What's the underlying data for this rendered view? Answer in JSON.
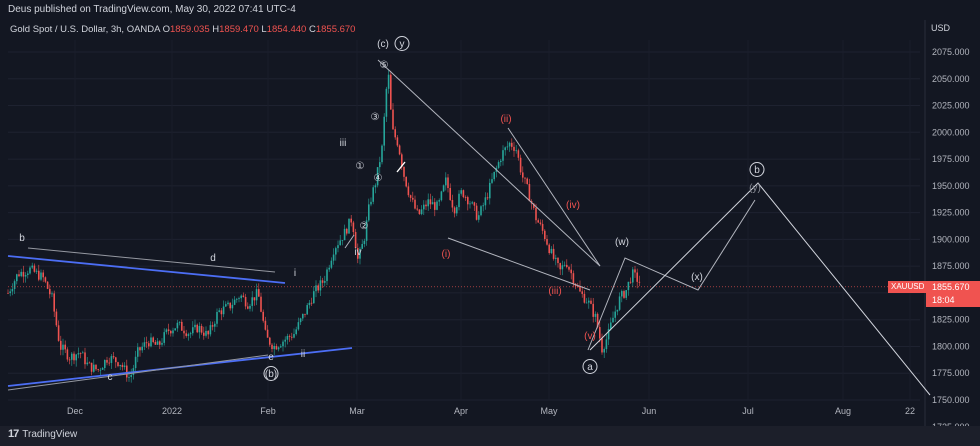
{
  "header": {
    "published": "Deus published on TradingView.com, May 30, 2022 07:41 UTC-4"
  },
  "legend": {
    "symbol": "Gold Spot / U.S. Dollar, 3h, OANDA",
    "open_label": "O",
    "open": "1859.035",
    "high_label": "H",
    "high": "1859.470",
    "low_label": "L",
    "low": "1854.440",
    "close_label": "C",
    "close": "1855.670"
  },
  "axis_currency": "USD",
  "price_tag": {
    "symbol": "XAUUSD",
    "price": "1855.670",
    "countdown": "18:04"
  },
  "footer": {
    "brand": "TradingView",
    "logo_mark": "17"
  },
  "colors": {
    "background": "#131722",
    "bull": "#26a69a",
    "bear": "#ef5350",
    "blue_line": "#4c6ef5",
    "annotation": "#b2b5be",
    "red_label": "#f05350"
  },
  "chart_data": {
    "type": "candlestick",
    "symbol": "XAUUSD",
    "interval": "3h",
    "ylim": [
      1725,
      2100
    ],
    "y_ticks": [
      "2075.000",
      "2050.000",
      "2025.000",
      "2000.000",
      "1975.000",
      "1950.000",
      "1925.000",
      "1900.000",
      "1875.000",
      "1850.000",
      "1825.000",
      "1800.000",
      "1775.000",
      "1750.000",
      "1725.000"
    ],
    "x_ticks": [
      "Dec",
      "2022",
      "Feb",
      "Mar",
      "Apr",
      "May",
      "Jun",
      "Jul",
      "Aug",
      "22"
    ],
    "price_path": [
      [
        0,
        1850
      ],
      [
        10,
        1868
      ],
      [
        22,
        1872
      ],
      [
        35,
        1864
      ],
      [
        44,
        1845
      ],
      [
        52,
        1800
      ],
      [
        62,
        1790
      ],
      [
        72,
        1795
      ],
      [
        80,
        1782
      ],
      [
        90,
        1778
      ],
      [
        100,
        1790
      ],
      [
        112,
        1785
      ],
      [
        122,
        1770
      ],
      [
        130,
        1795
      ],
      [
        140,
        1805
      ],
      [
        150,
        1800
      ],
      [
        160,
        1815
      ],
      [
        170,
        1820
      ],
      [
        182,
        1812
      ],
      [
        190,
        1818
      ],
      [
        200,
        1810
      ],
      [
        210,
        1832
      ],
      [
        222,
        1838
      ],
      [
        232,
        1848
      ],
      [
        240,
        1840
      ],
      [
        250,
        1850
      ],
      [
        258,
        1808
      ],
      [
        266,
        1800
      ],
      [
        276,
        1806
      ],
      [
        286,
        1812
      ],
      [
        296,
        1830
      ],
      [
        306,
        1850
      ],
      [
        316,
        1862
      ],
      [
        326,
        1892
      ],
      [
        336,
        1905
      ],
      [
        344,
        1920
      ],
      [
        350,
        1880
      ],
      [
        356,
        1900
      ],
      [
        362,
        1935
      ],
      [
        368,
        1955
      ],
      [
        374,
        1985
      ],
      [
        380,
        2060
      ],
      [
        384,
        2002
      ],
      [
        390,
        1990
      ],
      [
        396,
        1960
      ],
      [
        402,
        1940
      ],
      [
        410,
        1922
      ],
      [
        420,
        1935
      ],
      [
        430,
        1930
      ],
      [
        438,
        1955
      ],
      [
        446,
        1928
      ],
      [
        454,
        1945
      ],
      [
        462,
        1935
      ],
      [
        470,
        1920
      ],
      [
        478,
        1938
      ],
      [
        486,
        1960
      ],
      [
        494,
        1980
      ],
      [
        502,
        1990
      ],
      [
        508,
        1985
      ],
      [
        514,
        1960
      ],
      [
        520,
        1945
      ],
      [
        528,
        1920
      ],
      [
        536,
        1905
      ],
      [
        544,
        1885
      ],
      [
        552,
        1870
      ],
      [
        558,
        1880
      ],
      [
        566,
        1862
      ],
      [
        572,
        1850
      ],
      [
        580,
        1842
      ],
      [
        588,
        1826
      ],
      [
        594,
        1798
      ],
      [
        600,
        1810
      ],
      [
        606,
        1830
      ],
      [
        612,
        1845
      ],
      [
        618,
        1852
      ],
      [
        624,
        1868
      ],
      [
        632,
        1860
      ],
      [
        640,
        1858
      ]
    ],
    "annotations": {
      "wave_labels_white": [
        "b",
        "d",
        "c",
        "e",
        "(b)",
        "i",
        "ii",
        "iii",
        "iv",
        "(c)",
        "y",
        "(w)",
        "(x)",
        "b",
        "(y)",
        "a"
      ],
      "wave_labels_circled_digits": [
        "①",
        "②",
        "③",
        "④",
        "⑤"
      ],
      "wave_labels_red": [
        "(i)",
        "(ii)",
        "(iii)",
        "(iv)",
        "(v)"
      ]
    }
  }
}
